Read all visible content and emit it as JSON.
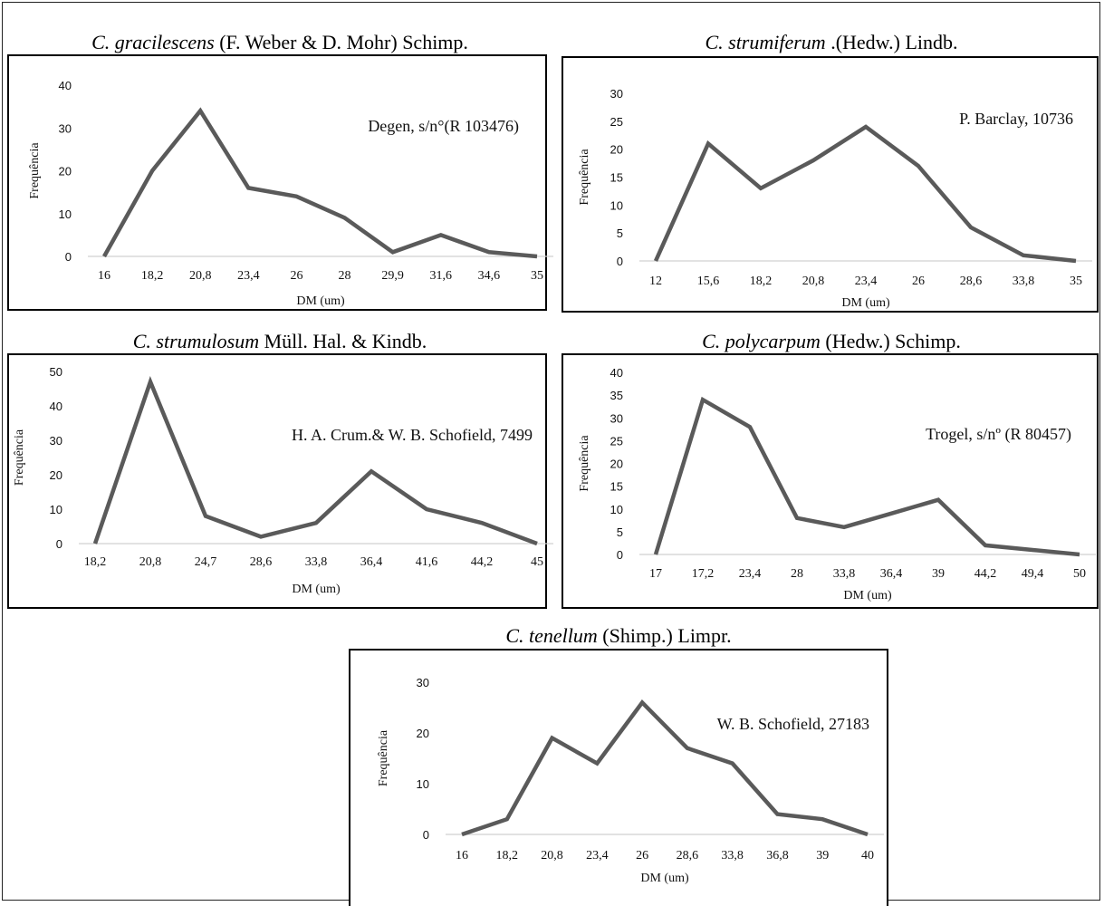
{
  "chart_data": [
    {
      "type": "line",
      "title_species": "C. gracilescens",
      "title_rest": " (F. Weber & D. Mohr) Schimp.",
      "annotation": "Degen, s/n°(R 103476)",
      "xlabel": "DM (um)",
      "ylabel": "Frequência",
      "categories": [
        "16",
        "18,2",
        "20,8",
        "23,4",
        "26",
        "28",
        "29,9",
        "31,6",
        "34,6",
        "35"
      ],
      "values": [
        0,
        20,
        34,
        16,
        14,
        9,
        1,
        5,
        1,
        0
      ],
      "ylim": [
        0,
        40
      ],
      "yticks": [
        0,
        10,
        20,
        30,
        40
      ],
      "color": "#5a5a5a"
    },
    {
      "type": "line",
      "title_species": "C. strumiferum",
      "title_rest": " .(Hedw.) Lindb.",
      "annotation": "P. Barclay, 10736",
      "xlabel": "DM (um)",
      "ylabel": "Frequência",
      "categories": [
        "12",
        "15,6",
        "18,2",
        "20,8",
        "23,4",
        "26",
        "28,6",
        "33,8",
        "35"
      ],
      "values": [
        0,
        21,
        13,
        18,
        24,
        17,
        6,
        1,
        0
      ],
      "ylim": [
        0,
        30
      ],
      "yticks": [
        0,
        5,
        10,
        15,
        20,
        25,
        30
      ],
      "color": "#5a5a5a"
    },
    {
      "type": "line",
      "title_species": "C. strumulosum",
      "title_rest": " Müll. Hal. & Kindb.",
      "annotation": "H. A. Crum.& W. B. Schofield, 7499",
      "xlabel": "DM (um)",
      "ylabel": "Frequência",
      "categories": [
        "18,2",
        "20,8",
        "24,7",
        "28,6",
        "33,8",
        "36,4",
        "41,6",
        "44,2",
        "45"
      ],
      "values": [
        0,
        47,
        8,
        2,
        6,
        21,
        10,
        6,
        0
      ],
      "ylim": [
        0,
        50
      ],
      "yticks": [
        0,
        10,
        20,
        30,
        40,
        50
      ],
      "color": "#5a5a5a"
    },
    {
      "type": "line",
      "title_species": "C. polycarpum",
      "title_rest": " (Hedw.) Schimp.",
      "annotation": "Trogel, s/nº (R 80457)",
      "xlabel": "DM (um)",
      "ylabel": "Frequência",
      "categories": [
        "17",
        "17,2",
        "23,4",
        "28",
        "33,8",
        "36,4",
        "39",
        "44,2",
        "49,4",
        "50"
      ],
      "values": [
        0,
        34,
        28,
        8,
        6,
        9,
        12,
        2,
        1,
        0
      ],
      "ylim": [
        0,
        40
      ],
      "yticks": [
        0,
        5,
        10,
        15,
        20,
        25,
        30,
        35,
        40
      ],
      "color": "#5a5a5a"
    },
    {
      "type": "line",
      "title_species": "C. tenellum",
      "title_rest": " (Shimp.) Limpr.",
      "annotation": "W. B. Schofield, 27183",
      "xlabel": "DM (um)",
      "ylabel": "Frequência",
      "categories": [
        "16",
        "18,2",
        "20,8",
        "23,4",
        "26",
        "28,6",
        "33,8",
        "36,8",
        "39",
        "40"
      ],
      "values": [
        0,
        3,
        19,
        14,
        26,
        17,
        14,
        4,
        3,
        0
      ],
      "ylim": [
        0,
        30
      ],
      "yticks": [
        0,
        10,
        20,
        30
      ],
      "color": "#5a5a5a"
    }
  ]
}
